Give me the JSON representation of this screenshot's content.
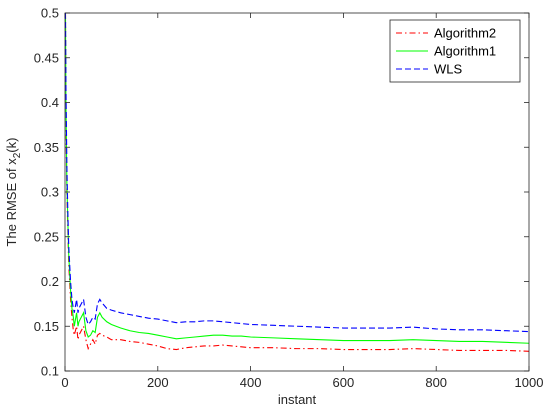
{
  "chart_data": {
    "type": "line",
    "xlabel": "instant",
    "ylabel": "The RMSE of x",
    "ylabel_sub": "2",
    "ylabel_suffix": "(k)",
    "xlim": [
      0,
      1000
    ],
    "ylim": [
      0.1,
      0.5
    ],
    "xticks": [
      0,
      200,
      400,
      600,
      800,
      1000
    ],
    "yticks": [
      0.1,
      0.15,
      0.2,
      0.25,
      0.3,
      0.35,
      0.4,
      0.45,
      0.5
    ],
    "grid": false,
    "legend_position": "top-right",
    "series": [
      {
        "name": "Algorithm2",
        "color": "#ff0000",
        "dash": "dash-dot",
        "x": [
          1,
          2,
          4,
          6,
          8,
          10,
          12,
          15,
          18,
          20,
          25,
          28,
          30,
          35,
          40,
          45,
          50,
          55,
          60,
          65,
          70,
          75,
          80,
          90,
          100,
          120,
          140,
          160,
          180,
          200,
          220,
          240,
          260,
          280,
          300,
          320,
          340,
          360,
          380,
          400,
          450,
          500,
          550,
          600,
          650,
          700,
          750,
          800,
          850,
          900,
          950,
          1000
        ],
        "values": [
          0.5,
          0.38,
          0.3,
          0.26,
          0.22,
          0.2,
          0.18,
          0.16,
          0.145,
          0.14,
          0.15,
          0.135,
          0.14,
          0.145,
          0.15,
          0.135,
          0.125,
          0.13,
          0.135,
          0.13,
          0.14,
          0.142,
          0.14,
          0.138,
          0.135,
          0.135,
          0.133,
          0.132,
          0.13,
          0.128,
          0.125,
          0.124,
          0.126,
          0.127,
          0.128,
          0.128,
          0.129,
          0.128,
          0.127,
          0.126,
          0.126,
          0.125,
          0.125,
          0.124,
          0.124,
          0.124,
          0.125,
          0.124,
          0.123,
          0.123,
          0.123,
          0.122
        ]
      },
      {
        "name": "Algorithm1",
        "color": "#00ff00",
        "dash": "solid",
        "x": [
          1,
          2,
          4,
          6,
          8,
          10,
          12,
          15,
          18,
          20,
          25,
          28,
          30,
          35,
          40,
          45,
          50,
          55,
          60,
          65,
          70,
          75,
          80,
          90,
          100,
          120,
          140,
          160,
          180,
          200,
          220,
          240,
          260,
          280,
          300,
          320,
          340,
          360,
          380,
          400,
          450,
          500,
          550,
          600,
          650,
          700,
          750,
          800,
          850,
          900,
          950,
          1000
        ],
        "values": [
          0.5,
          0.4,
          0.31,
          0.27,
          0.23,
          0.21,
          0.19,
          0.17,
          0.16,
          0.15,
          0.165,
          0.15,
          0.155,
          0.16,
          0.165,
          0.145,
          0.138,
          0.14,
          0.145,
          0.143,
          0.16,
          0.165,
          0.16,
          0.155,
          0.152,
          0.148,
          0.145,
          0.143,
          0.142,
          0.14,
          0.138,
          0.136,
          0.137,
          0.138,
          0.139,
          0.14,
          0.14,
          0.139,
          0.139,
          0.138,
          0.137,
          0.136,
          0.135,
          0.134,
          0.134,
          0.134,
          0.135,
          0.134,
          0.133,
          0.133,
          0.132,
          0.131
        ]
      },
      {
        "name": "WLS",
        "color": "#0000ff",
        "dash": "dashed",
        "x": [
          1,
          2,
          4,
          6,
          8,
          10,
          12,
          15,
          18,
          20,
          25,
          28,
          30,
          35,
          40,
          45,
          50,
          55,
          60,
          65,
          70,
          75,
          80,
          90,
          100,
          120,
          140,
          160,
          180,
          200,
          220,
          240,
          260,
          280,
          300,
          320,
          340,
          360,
          380,
          400,
          450,
          500,
          550,
          600,
          650,
          700,
          750,
          800,
          850,
          900,
          950,
          1000
        ],
        "values": [
          0.5,
          0.42,
          0.33,
          0.28,
          0.24,
          0.22,
          0.2,
          0.18,
          0.17,
          0.165,
          0.18,
          0.165,
          0.17,
          0.175,
          0.18,
          0.16,
          0.152,
          0.155,
          0.16,
          0.158,
          0.175,
          0.18,
          0.176,
          0.17,
          0.168,
          0.165,
          0.163,
          0.161,
          0.159,
          0.158,
          0.156,
          0.154,
          0.155,
          0.155,
          0.156,
          0.156,
          0.155,
          0.154,
          0.153,
          0.152,
          0.151,
          0.15,
          0.149,
          0.148,
          0.148,
          0.148,
          0.149,
          0.147,
          0.146,
          0.146,
          0.145,
          0.144
        ]
      }
    ]
  }
}
